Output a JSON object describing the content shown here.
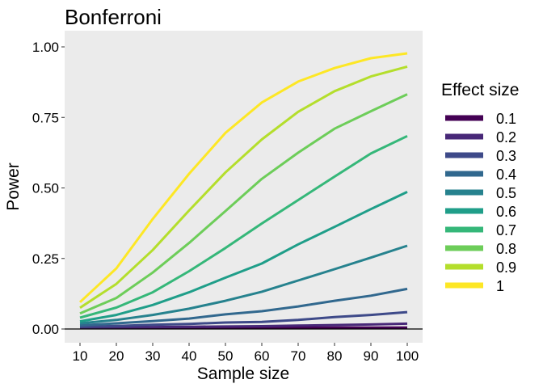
{
  "chart_data": {
    "type": "line",
    "title": "Bonferroni",
    "xlabel": "Sample size",
    "ylabel": "Power",
    "x": [
      10,
      20,
      30,
      40,
      50,
      60,
      70,
      80,
      90,
      100
    ],
    "xlim": [
      10,
      100
    ],
    "ylim": [
      0,
      1
    ],
    "x_ticks": [
      "10",
      "20",
      "30",
      "40",
      "50",
      "60",
      "70",
      "80",
      "90",
      "100"
    ],
    "y_ticks": [
      "0.00",
      "0.25",
      "0.50",
      "0.75",
      "1.00"
    ],
    "y_tick_values": [
      0,
      0.25,
      0.5,
      0.75,
      1
    ],
    "grid": false,
    "panel_background": "#ebebeb",
    "legend_title": "Effect size",
    "legend_position": "right",
    "series": [
      {
        "name": "0.1",
        "color": "#440154",
        "values": [
          0.003,
          0.003,
          0.004,
          0.004,
          0.004,
          0.004,
          0.005,
          0.005,
          0.005,
          0.005
        ]
      },
      {
        "name": "0.2",
        "color": "#482878",
        "values": [
          0.005,
          0.006,
          0.007,
          0.008,
          0.009,
          0.01,
          0.012,
          0.014,
          0.016,
          0.019
        ]
      },
      {
        "name": "0.3",
        "color": "#3E4A89",
        "values": [
          0.008,
          0.011,
          0.015,
          0.018,
          0.023,
          0.025,
          0.032,
          0.042,
          0.05,
          0.06
        ]
      },
      {
        "name": "0.4",
        "color": "#31688E",
        "values": [
          0.013,
          0.02,
          0.028,
          0.037,
          0.052,
          0.063,
          0.08,
          0.1,
          0.118,
          0.142
        ]
      },
      {
        "name": "0.5",
        "color": "#26828E",
        "values": [
          0.02,
          0.032,
          0.05,
          0.072,
          0.1,
          0.132,
          0.172,
          0.212,
          0.253,
          0.295
        ]
      },
      {
        "name": "0.6",
        "color": "#1F9E89",
        "values": [
          0.027,
          0.05,
          0.085,
          0.13,
          0.182,
          0.232,
          0.3,
          0.362,
          0.425,
          0.486
        ]
      },
      {
        "name": "0.7",
        "color": "#35B779",
        "values": [
          0.04,
          0.076,
          0.13,
          0.205,
          0.287,
          0.374,
          0.457,
          0.54,
          0.622,
          0.684
        ]
      },
      {
        "name": "0.8",
        "color": "#6DCD59",
        "values": [
          0.055,
          0.11,
          0.2,
          0.305,
          0.418,
          0.532,
          0.625,
          0.71,
          0.772,
          0.832
        ]
      },
      {
        "name": "0.9",
        "color": "#B4DE2C",
        "values": [
          0.075,
          0.16,
          0.28,
          0.42,
          0.555,
          0.672,
          0.77,
          0.843,
          0.895,
          0.93
        ]
      },
      {
        "name": "1",
        "color": "#FDE725",
        "values": [
          0.095,
          0.215,
          0.39,
          0.55,
          0.695,
          0.803,
          0.877,
          0.925,
          0.96,
          0.977
        ]
      }
    ]
  }
}
